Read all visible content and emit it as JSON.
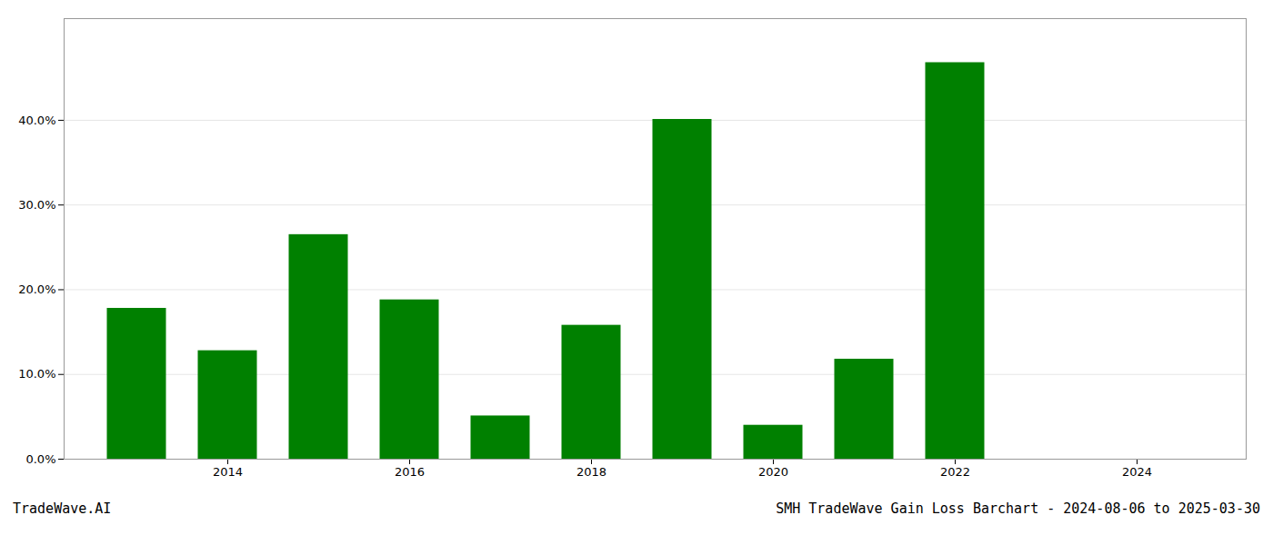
{
  "chart_data": {
    "type": "bar",
    "title": "SMH TradeWave Gain Loss Barchart - 2024-08-06 to 2025-03-30",
    "annotations": [
      "TradeWave.AI"
    ],
    "x": [
      2013,
      2014,
      2015,
      2016,
      2017,
      2018,
      2019,
      2020,
      2021,
      2022,
      2023
    ],
    "values": [
      0.178,
      0.128,
      0.265,
      0.188,
      0.051,
      0.158,
      0.401,
      0.04,
      0.118,
      0.468,
      0.0
    ],
    "color": "#008000",
    "xlim": [
      2012.2,
      2025.2
    ],
    "xticks": [
      2014,
      2016,
      2018,
      2020,
      2022,
      2024
    ],
    "ylim": [
      0,
      0.52
    ],
    "yticks": [
      {
        "value": 0.0,
        "label": "0.0%"
      },
      {
        "value": 0.1,
        "label": "10.0%"
      },
      {
        "value": 0.2,
        "label": "20.0%"
      },
      {
        "value": 0.3,
        "label": "30.0%"
      },
      {
        "value": 0.4,
        "label": "40.0%"
      }
    ],
    "grid": true
  }
}
